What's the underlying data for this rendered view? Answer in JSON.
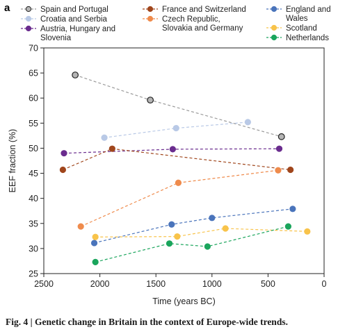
{
  "panel_label": "a",
  "caption": "Fig. 4 | Genetic change in Britain in the context of Europe-wide trends.",
  "chart_data": {
    "type": "scatter",
    "xlabel": "Time (years BC)",
    "ylabel": "EEF fraction (%)",
    "xlim": [
      2500,
      0
    ],
    "ylim": [
      25,
      70
    ],
    "xticks": [
      "2500",
      "2000",
      "1500",
      "1000",
      "500",
      "0"
    ],
    "yticks": [
      "25",
      "30",
      "35",
      "40",
      "45",
      "50",
      "55",
      "60",
      "65",
      "70"
    ],
    "grid": false,
    "legend_position": "top",
    "connected_with_dashed_lines": true,
    "series": [
      {
        "name": "Spain and Portugal",
        "color": "#9b9b9b",
        "x": [
          2220,
          1550,
          380
        ],
        "y": [
          64.6,
          59.6,
          52.3
        ]
      },
      {
        "name": "Croatia and Serbia",
        "color": "#b9c9e6",
        "x": [
          1960,
          1320,
          680
        ],
        "y": [
          52.1,
          54.0,
          55.2
        ]
      },
      {
        "name": "Austria, Hungary and Slovenia",
        "color": "#6a2c8e",
        "x": [
          2320,
          1350,
          400
        ],
        "y": [
          49.0,
          49.8,
          49.9
        ]
      },
      {
        "name": "France and Switzerland",
        "color": "#a0461c",
        "x": [
          2330,
          1890,
          300
        ],
        "y": [
          45.7,
          49.9,
          45.7
        ]
      },
      {
        "name": "Czech Republic, Slovakia and Germany",
        "color": "#ef8b4c",
        "x": [
          2170,
          1300,
          410
        ],
        "y": [
          34.4,
          43.1,
          45.6
        ]
      },
      {
        "name": "England and Wales",
        "color": "#4a74bb",
        "x": [
          2050,
          1360,
          1000,
          280
        ],
        "y": [
          31.1,
          34.8,
          36.1,
          37.9
        ]
      },
      {
        "name": "Scotland",
        "color": "#f8c34a",
        "x": [
          2040,
          1310,
          880,
          150
        ],
        "y": [
          32.3,
          32.4,
          34.0,
          33.4
        ]
      },
      {
        "name": "Netherlands",
        "color": "#1aa55c",
        "x": [
          2040,
          1380,
          1040,
          320
        ],
        "y": [
          27.3,
          31.0,
          30.4,
          34.4
        ]
      }
    ]
  }
}
